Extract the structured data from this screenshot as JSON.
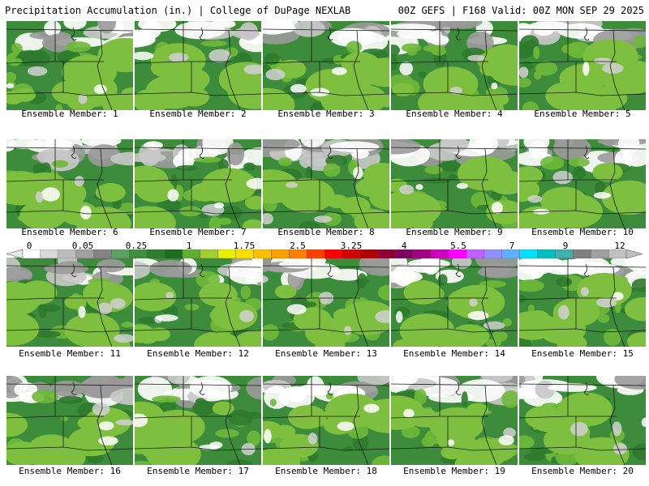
{
  "header": {
    "left_title": "Precipitation Accumulation (in.) | College of DuPage NEXLAB",
    "right_title": "00Z GEFS | F168 Valid: 00Z MON SEP 29 2025"
  },
  "caption_prefix": "Ensemble Member: ",
  "members": [
    {
      "label": "Ensemble Member: 1"
    },
    {
      "label": "Ensemble Member: 2"
    },
    {
      "label": "Ensemble Member: 3"
    },
    {
      "label": "Ensemble Member: 4"
    },
    {
      "label": "Ensemble Member: 5"
    },
    {
      "label": "Ensemble Member: 6"
    },
    {
      "label": "Ensemble Member: 7"
    },
    {
      "label": "Ensemble Member: 8"
    },
    {
      "label": "Ensemble Member: 9"
    },
    {
      "label": "Ensemble Member: 10"
    },
    {
      "label": "Ensemble Member: 11"
    },
    {
      "label": "Ensemble Member: 12"
    },
    {
      "label": "Ensemble Member: 13"
    },
    {
      "label": "Ensemble Member: 14"
    },
    {
      "label": "Ensemble Member: 15"
    },
    {
      "label": "Ensemble Member: 16"
    },
    {
      "label": "Ensemble Member: 17"
    },
    {
      "label": "Ensemble Member: 18"
    },
    {
      "label": "Ensemble Member: 19"
    },
    {
      "label": "Ensemble Member: 20"
    }
  ],
  "color_scale": {
    "labels": [
      "0",
      "0.05",
      "0.25",
      "1",
      "1.75",
      "2.5",
      "3.25",
      "4",
      "5.5",
      "7",
      "9",
      "12"
    ],
    "colors": [
      "#ffffff",
      "#d9d9d9",
      "#bdbdbd",
      "#a0a0a0",
      "#848484",
      "#5f9f5f",
      "#3f8f3f",
      "#2e7d2e",
      "#1f6b1f",
      "#5fb02f",
      "#9fd02f",
      "#e8f000",
      "#ffe000",
      "#ffc000",
      "#ffa000",
      "#ff7f00",
      "#ff4000",
      "#ff0000",
      "#d00000",
      "#b00000",
      "#900030",
      "#800060",
      "#a00080",
      "#d000c0",
      "#ff00ff",
      "#c060ff",
      "#9090ff",
      "#60b0ff",
      "#00e0ff",
      "#00c0c0",
      "#40b0b0",
      "#808080",
      "#a0a0a0",
      "#c0c0c0"
    ]
  }
}
